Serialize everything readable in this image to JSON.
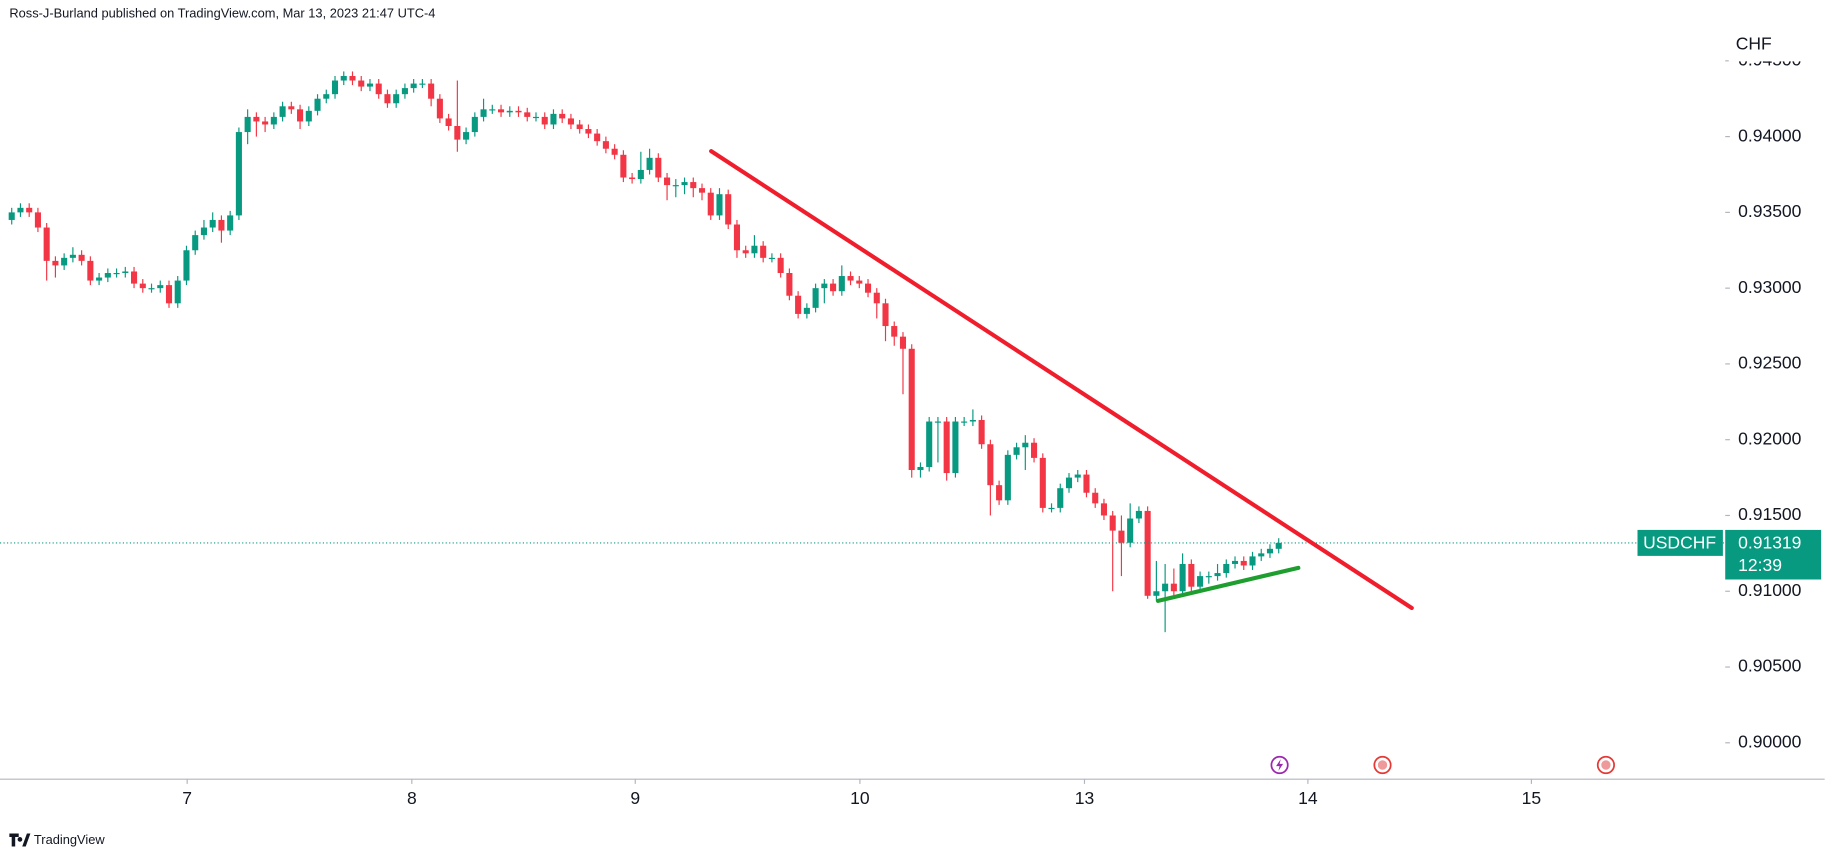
{
  "header": {
    "publisher": "Ross-J-Burland published on TradingView.com, Mar 13, 2023 21:47 UTC-4"
  },
  "chart_data": {
    "type": "candlestick",
    "symbol": "USDCHF",
    "currency": "CHF",
    "up_color": "#089981",
    "down_color": "#f23645",
    "open": [
      0.9345,
      0.935,
      0.9353,
      0.935,
      0.934,
      0.9318,
      0.9315,
      0.932,
      0.9322,
      0.9318,
      0.9305,
      0.9307,
      0.931,
      0.931,
      0.9311,
      0.9303,
      0.93,
      0.93,
      0.9302,
      0.929,
      0.9305,
      0.9325,
      0.9335,
      0.934,
      0.9345,
      0.9338,
      0.9348,
      0.9403,
      0.9413,
      0.941,
      0.9408,
      0.9413,
      0.942,
      0.9418,
      0.941,
      0.9417,
      0.9425,
      0.9428,
      0.9437,
      0.944,
      0.9437,
      0.9433,
      0.9435,
      0.9428,
      0.9422,
      0.9428,
      0.9432,
      0.9435,
      0.9435,
      0.9425,
      0.9412,
      0.9407,
      0.9398,
      0.9403,
      0.9413,
      0.9418,
      0.9418,
      0.9416,
      0.9417,
      0.9416,
      0.9413,
      0.9413,
      0.9408,
      0.9415,
      0.9412,
      0.9408,
      0.9405,
      0.9402,
      0.9397,
      0.9392,
      0.9388,
      0.9373,
      0.9372,
      0.9378,
      0.9386,
      0.9373,
      0.9368,
      0.9368,
      0.937,
      0.9366,
      0.9363,
      0.9348,
      0.9362,
      0.9342,
      0.9325,
      0.9323,
      0.9328,
      0.932,
      0.932,
      0.931,
      0.9295,
      0.9283,
      0.9287,
      0.93,
      0.9303,
      0.9298,
      0.9308,
      0.9305,
      0.9303,
      0.9297,
      0.929,
      0.9275,
      0.9268,
      0.926,
      0.918,
      0.9182,
      0.9212,
      0.9212,
      0.9178,
      0.9212,
      0.9212,
      0.9213,
      0.9197,
      0.917,
      0.916,
      0.919,
      0.9195,
      0.9198,
      0.9188,
      0.9155,
      0.9155,
      0.9168,
      0.9175,
      0.9177,
      0.9165,
      0.9158,
      0.915,
      0.914,
      0.9132,
      0.9148,
      0.9153,
      0.9097,
      0.91,
      0.9105,
      0.91,
      0.9118,
      0.9103,
      0.911,
      0.911,
      0.9112,
      0.9118,
      0.912,
      0.9117,
      0.9123,
      0.9125,
      0.9128
    ],
    "high": [
      0.9353,
      0.9356,
      0.9356,
      0.9353,
      0.9343,
      0.9321,
      0.9323,
      0.9327,
      0.9325,
      0.9321,
      0.931,
      0.9313,
      0.9313,
      0.9314,
      0.9314,
      0.9306,
      0.9303,
      0.9305,
      0.9305,
      0.9308,
      0.9328,
      0.9338,
      0.9345,
      0.935,
      0.9348,
      0.9351,
      0.9406,
      0.9418,
      0.9416,
      0.9413,
      0.9416,
      0.9423,
      0.9423,
      0.9421,
      0.942,
      0.9428,
      0.9431,
      0.944,
      0.9443,
      0.9443,
      0.944,
      0.9438,
      0.9438,
      0.9431,
      0.9431,
      0.9435,
      0.9438,
      0.9438,
      0.9438,
      0.9428,
      0.9415,
      0.9437,
      0.9406,
      0.9416,
      0.9425,
      0.9421,
      0.9421,
      0.942,
      0.942,
      0.9419,
      0.9416,
      0.9416,
      0.9418,
      0.9418,
      0.9415,
      0.9411,
      0.9408,
      0.9405,
      0.94,
      0.9395,
      0.9391,
      0.9376,
      0.939,
      0.9392,
      0.9389,
      0.9376,
      0.9372,
      0.9373,
      0.9373,
      0.9369,
      0.9366,
      0.9366,
      0.9365,
      0.9345,
      0.9328,
      0.9335,
      0.9331,
      0.9323,
      0.9323,
      0.9313,
      0.9298,
      0.929,
      0.9303,
      0.9306,
      0.9306,
      0.9315,
      0.9311,
      0.9308,
      0.9306,
      0.93,
      0.9293,
      0.9278,
      0.9271,
      0.9263,
      0.9185,
      0.9215,
      0.9215,
      0.9215,
      0.9215,
      0.9215,
      0.922,
      0.9216,
      0.92,
      0.9173,
      0.9193,
      0.9198,
      0.9203,
      0.9201,
      0.9191,
      0.9158,
      0.9171,
      0.9178,
      0.918,
      0.918,
      0.9168,
      0.9161,
      0.9153,
      0.915,
      0.9158,
      0.9156,
      0.9156,
      0.912,
      0.9118,
      0.9115,
      0.9125,
      0.9121,
      0.9113,
      0.9113,
      0.9118,
      0.9121,
      0.9123,
      0.9123,
      0.9126,
      0.9128,
      0.9131,
      0.9135
    ],
    "low": [
      0.9342,
      0.9347,
      0.9347,
      0.9337,
      0.9305,
      0.9307,
      0.9312,
      0.9317,
      0.9315,
      0.9302,
      0.9302,
      0.9304,
      0.9307,
      0.9307,
      0.93,
      0.9297,
      0.9297,
      0.9297,
      0.9287,
      0.9287,
      0.9302,
      0.9322,
      0.9332,
      0.9337,
      0.933,
      0.9335,
      0.9345,
      0.9395,
      0.94,
      0.9403,
      0.9405,
      0.941,
      0.9415,
      0.9405,
      0.9407,
      0.9414,
      0.9422,
      0.9425,
      0.9434,
      0.9434,
      0.943,
      0.943,
      0.9425,
      0.9419,
      0.9419,
      0.9425,
      0.9429,
      0.9432,
      0.942,
      0.9409,
      0.9404,
      0.939,
      0.9395,
      0.94,
      0.941,
      0.9415,
      0.9413,
      0.9413,
      0.9413,
      0.941,
      0.941,
      0.9405,
      0.9405,
      0.9409,
      0.9405,
      0.9402,
      0.9399,
      0.9394,
      0.9389,
      0.9385,
      0.937,
      0.9369,
      0.9369,
      0.9375,
      0.937,
      0.9358,
      0.936,
      0.9362,
      0.936,
      0.9358,
      0.9345,
      0.9345,
      0.9339,
      0.932,
      0.932,
      0.932,
      0.9317,
      0.9317,
      0.9307,
      0.9292,
      0.928,
      0.928,
      0.9284,
      0.929,
      0.9295,
      0.9295,
      0.9302,
      0.93,
      0.9294,
      0.928,
      0.9265,
      0.9262,
      0.923,
      0.9175,
      0.9175,
      0.9179,
      0.9185,
      0.9173,
      0.9175,
      0.9209,
      0.9209,
      0.9194,
      0.915,
      0.9157,
      0.9157,
      0.9187,
      0.918,
      0.9185,
      0.9152,
      0.9152,
      0.9152,
      0.9165,
      0.9172,
      0.9162,
      0.9155,
      0.9147,
      0.91,
      0.911,
      0.9129,
      0.9145,
      0.9095,
      0.9094,
      0.9073,
      0.9097,
      0.9097,
      0.91,
      0.91,
      0.9105,
      0.9107,
      0.9109,
      0.9115,
      0.9114,
      0.9114,
      0.912,
      0.9122,
      0.9125
    ],
    "close": [
      0.935,
      0.9353,
      0.935,
      0.934,
      0.9318,
      0.9315,
      0.932,
      0.9322,
      0.9318,
      0.9305,
      0.9307,
      0.931,
      0.931,
      0.9311,
      0.9303,
      0.93,
      0.93,
      0.9302,
      0.929,
      0.9305,
      0.9325,
      0.9335,
      0.934,
      0.9345,
      0.9338,
      0.9348,
      0.9403,
      0.9413,
      0.941,
      0.9408,
      0.9413,
      0.942,
      0.9418,
      0.941,
      0.9417,
      0.9425,
      0.9428,
      0.9437,
      0.944,
      0.9437,
      0.9433,
      0.9435,
      0.9428,
      0.9422,
      0.9428,
      0.9432,
      0.9435,
      0.9435,
      0.9425,
      0.9412,
      0.9407,
      0.9398,
      0.9403,
      0.9413,
      0.9418,
      0.9418,
      0.9416,
      0.9417,
      0.9416,
      0.9413,
      0.9413,
      0.9408,
      0.9415,
      0.9412,
      0.9408,
      0.9405,
      0.9402,
      0.9397,
      0.9392,
      0.9388,
      0.9373,
      0.9372,
      0.9378,
      0.9386,
      0.9373,
      0.9368,
      0.9368,
      0.937,
      0.9366,
      0.9363,
      0.9348,
      0.9362,
      0.9342,
      0.9325,
      0.9323,
      0.9328,
      0.932,
      0.932,
      0.931,
      0.9295,
      0.9283,
      0.9287,
      0.93,
      0.9303,
      0.9298,
      0.9308,
      0.9305,
      0.9303,
      0.9297,
      0.929,
      0.9275,
      0.9268,
      0.926,
      0.918,
      0.9182,
      0.9212,
      0.9212,
      0.9178,
      0.9212,
      0.9212,
      0.9213,
      0.9197,
      0.917,
      0.916,
      0.919,
      0.9195,
      0.9198,
      0.9188,
      0.9155,
      0.9155,
      0.9168,
      0.9175,
      0.9177,
      0.9165,
      0.9158,
      0.915,
      0.914,
      0.9132,
      0.9148,
      0.9153,
      0.9097,
      0.91,
      0.9105,
      0.91,
      0.9118,
      0.9103,
      0.911,
      0.911,
      0.9112,
      0.9118,
      0.912,
      0.9117,
      0.9123,
      0.9125,
      0.9128,
      0.91319
    ],
    "xlim": [
      -0.27,
      196.1
    ],
    "xticks": [
      {
        "value": 20.08,
        "label": "7"
      },
      {
        "value": 45.79,
        "label": "8"
      },
      {
        "value": 71.36,
        "label": "9"
      },
      {
        "value": 97.07,
        "label": "10"
      },
      {
        "value": 122.77,
        "label": "13"
      },
      {
        "value": 148.34,
        "label": "14"
      },
      {
        "value": 173.92,
        "label": "15"
      }
    ],
    "ylim": [
      0.8976,
      0.9473
    ],
    "yticks": [
      {
        "value": 0.9,
        "label": "0.90000"
      },
      {
        "value": 0.905,
        "label": "0.90500"
      },
      {
        "value": 0.91,
        "label": "0.91000"
      },
      {
        "value": 0.915,
        "label": "0.91500"
      },
      {
        "value": 0.92,
        "label": "0.92000"
      },
      {
        "value": 0.925,
        "label": "0.92500"
      },
      {
        "value": 0.93,
        "label": "0.93000"
      },
      {
        "value": 0.935,
        "label": "0.93500"
      },
      {
        "value": 0.94,
        "label": "0.94000"
      },
      {
        "value": 0.945,
        "label": "0.94500"
      }
    ],
    "last_price": 0.91319,
    "countdown": "12:39"
  },
  "footer": {
    "brand": "TradingView"
  }
}
